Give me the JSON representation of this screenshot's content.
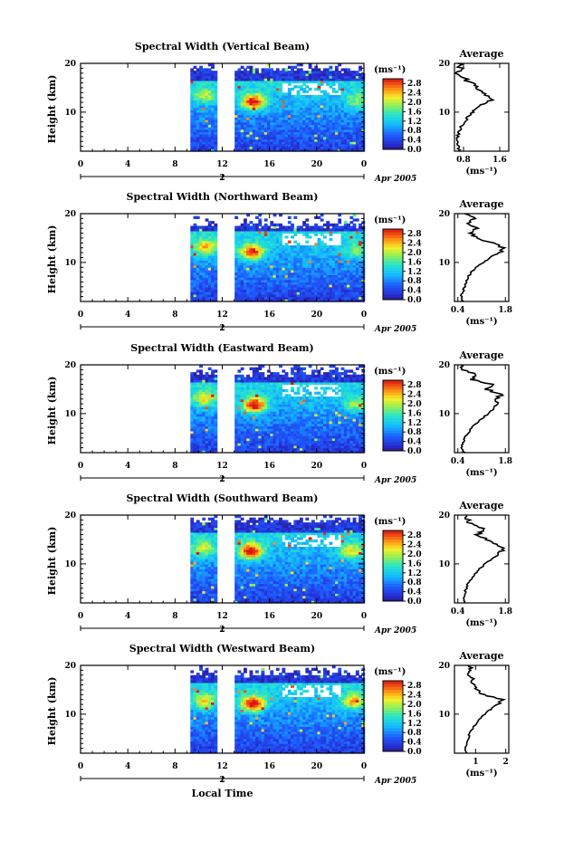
{
  "figure": {
    "xlabel": "Local Time",
    "date_label": "Apr 2005",
    "day_label": "2",
    "cbar_unit": "(ms⁻¹)",
    "avg_unit": "(ms⁻¹)",
    "ylabel": "Height (km)",
    "avg_title": "Average"
  },
  "chart_data": [
    {
      "type": "heatmap",
      "title": "Spectral Width (Vertical Beam)",
      "ylabel": "Height (km)",
      "xlabel": "Local Time",
      "x_ticks": [
        "0",
        "4",
        "8",
        "12",
        "16",
        "20",
        "0"
      ],
      "y_ticks": [
        "20",
        "10"
      ],
      "xlim": [
        0,
        24
      ],
      "ylim": [
        2,
        20
      ],
      "data_gaps": [
        [
          0,
          9.3
        ],
        [
          11.5,
          12.9
        ]
      ],
      "colorbar_ticks": [
        "2.8",
        "2.4",
        "2.0",
        "1.6",
        "1.2",
        "0.8",
        "0.4",
        "0.0"
      ],
      "colorbar_range": [
        0,
        3.0
      ],
      "hotspots": [
        [
          14.5,
          12.0,
          2.8
        ],
        [
          23.3,
          12.2,
          1.6
        ],
        [
          10.4,
          13.3,
          1.7
        ]
      ],
      "upper_limit_km": 18.5,
      "avg_profile": {
        "title": "Average",
        "xlabel": "(ms⁻¹)",
        "x_ticks": [
          "0.8",
          "1.6"
        ],
        "xlim": [
          0.6,
          1.8
        ],
        "y_ticks": [
          "20",
          "10"
        ],
        "heights": [
          2,
          3,
          4,
          5,
          6,
          7,
          8,
          9,
          10,
          11,
          12,
          13,
          14,
          15,
          16,
          17,
          18,
          19,
          20
        ],
        "values": [
          0.7,
          0.68,
          0.66,
          0.67,
          0.7,
          0.75,
          0.82,
          0.9,
          1.0,
          1.1,
          1.3,
          1.45,
          1.25,
          1.15,
          0.95,
          0.8,
          0.7,
          0.75,
          0.68
        ]
      }
    },
    {
      "type": "heatmap",
      "title": "Spectral Width (Northward Beam)",
      "ylabel": "Height (km)",
      "xlabel": "Local Time",
      "x_ticks": [
        "0",
        "4",
        "8",
        "12",
        "16",
        "20",
        "0"
      ],
      "y_ticks": [
        "20",
        "10"
      ],
      "xlim": [
        0,
        24
      ],
      "ylim": [
        2,
        20
      ],
      "data_gaps": [
        [
          0,
          9.3
        ],
        [
          11.5,
          12.9
        ]
      ],
      "colorbar_ticks": [
        "2.8",
        "2.4",
        "2.0",
        "1.6",
        "1.2",
        "0.8",
        "0.4",
        "0.0"
      ],
      "colorbar_range": [
        0,
        3.0
      ],
      "hotspots": [
        [
          14.4,
          12.0,
          2.7
        ],
        [
          23.2,
          12.3,
          1.6
        ],
        [
          10.5,
          13.0,
          2.2
        ]
      ],
      "upper_limit_km": 17.5,
      "avg_profile": {
        "title": "Average",
        "xlabel": "(ms⁻¹)",
        "x_ticks": [
          "0.4",
          "1.8"
        ],
        "xlim": [
          0.3,
          1.9
        ],
        "y_ticks": [
          "20",
          "10"
        ],
        "heights": [
          2,
          3,
          4,
          5,
          6,
          7,
          8,
          9,
          10,
          11,
          12,
          13,
          14,
          15,
          16,
          17,
          18,
          19,
          20
        ],
        "values": [
          0.55,
          0.5,
          0.55,
          0.6,
          0.65,
          0.7,
          0.8,
          0.95,
          1.15,
          1.35,
          1.6,
          1.75,
          1.4,
          1.0,
          0.8,
          0.95,
          0.7,
          0.9,
          0.6
        ]
      }
    },
    {
      "type": "heatmap",
      "title": "Spectral Width (Eastward Beam)",
      "ylabel": "Height (km)",
      "xlabel": "Local Time",
      "x_ticks": [
        "0",
        "4",
        "8",
        "12",
        "16",
        "20",
        "0"
      ],
      "y_ticks": [
        "20",
        "10"
      ],
      "xlim": [
        0,
        24
      ],
      "ylim": [
        2,
        20
      ],
      "data_gaps": [
        [
          0,
          9.3
        ],
        [
          11.5,
          12.9
        ]
      ],
      "colorbar_ticks": [
        "2.8",
        "2.4",
        "2.0",
        "1.6",
        "1.2",
        "0.8",
        "0.4",
        "0.0"
      ],
      "colorbar_range": [
        0,
        3.0
      ],
      "hotspots": [
        [
          14.6,
          11.6,
          3.0
        ],
        [
          23.2,
          11.8,
          1.7
        ],
        [
          10.4,
          13.0,
          2.0
        ]
      ],
      "upper_limit_km": 18.0,
      "avg_profile": {
        "title": "Average",
        "xlabel": "(ms⁻¹)",
        "x_ticks": [
          "0.4",
          "1.8"
        ],
        "xlim": [
          0.3,
          1.9
        ],
        "y_ticks": [
          "20",
          "10"
        ],
        "heights": [
          2,
          3,
          4,
          5,
          6,
          7,
          8,
          9,
          10,
          11,
          12,
          13,
          14,
          15,
          16,
          17,
          18,
          19,
          20
        ],
        "values": [
          0.6,
          0.5,
          0.55,
          0.6,
          0.7,
          0.8,
          0.95,
          1.1,
          1.3,
          1.45,
          1.55,
          1.5,
          1.7,
          1.2,
          1.4,
          0.8,
          0.9,
          0.6,
          0.5
        ]
      }
    },
    {
      "type": "heatmap",
      "title": "Spectral Width (Southward Beam)",
      "ylabel": "Height (km)",
      "xlabel": "Local Time",
      "x_ticks": [
        "0",
        "4",
        "8",
        "12",
        "16",
        "20",
        "0"
      ],
      "y_ticks": [
        "20",
        "10"
      ],
      "xlim": [
        0,
        24
      ],
      "ylim": [
        2,
        20
      ],
      "data_gaps": [
        [
          0,
          9.3
        ],
        [
          11.5,
          12.9
        ]
      ],
      "colorbar_ticks": [
        "2.8",
        "2.4",
        "2.0",
        "1.6",
        "1.2",
        "0.8",
        "0.4",
        "0.0"
      ],
      "colorbar_range": [
        0,
        3.0
      ],
      "hotspots": [
        [
          14.3,
          12.5,
          2.9
        ],
        [
          22.8,
          12.4,
          2.0
        ],
        [
          10.3,
          13.0,
          1.8
        ]
      ],
      "upper_limit_km": 18.5,
      "avg_profile": {
        "title": "Average",
        "xlabel": "(ms⁻¹)",
        "x_ticks": [
          "0.4",
          "1.8"
        ],
        "xlim": [
          0.3,
          1.9
        ],
        "y_ticks": [
          "20",
          "10"
        ],
        "heights": [
          2,
          3,
          4,
          5,
          6,
          7,
          8,
          9,
          10,
          11,
          12,
          13,
          14,
          15,
          16,
          17,
          18,
          19,
          20
        ],
        "values": [
          0.6,
          0.55,
          0.6,
          0.65,
          0.7,
          0.8,
          0.9,
          1.05,
          1.2,
          1.4,
          1.6,
          1.75,
          1.55,
          1.3,
          1.0,
          1.2,
          0.8,
          0.7,
          0.65
        ]
      }
    },
    {
      "type": "heatmap",
      "title": "Spectral Width (Westward Beam)",
      "ylabel": "Height (km)",
      "xlabel": "Local Time",
      "x_ticks": [
        "0",
        "4",
        "8",
        "12",
        "16",
        "20",
        "0"
      ],
      "y_ticks": [
        "20",
        "10"
      ],
      "xlim": [
        0,
        24
      ],
      "ylim": [
        2,
        20
      ],
      "data_gaps": [
        [
          0,
          9.3
        ],
        [
          11.5,
          12.9
        ]
      ],
      "colorbar_ticks": [
        "2.8",
        "2.4",
        "2.0",
        "1.6",
        "1.2",
        "0.8",
        "0.4",
        "0.0"
      ],
      "colorbar_range": [
        0,
        3.0
      ],
      "hotspots": [
        [
          14.5,
          12.0,
          3.0
        ],
        [
          23.0,
          12.5,
          2.2
        ],
        [
          10.4,
          12.5,
          2.0
        ]
      ],
      "upper_limit_km": 18.0,
      "avg_profile": {
        "title": "Average",
        "xlabel": "(ms⁻¹)",
        "x_ticks": [
          "1",
          "2"
        ],
        "xlim": [
          0.3,
          2.1
        ],
        "y_ticks": [
          "20",
          "10"
        ],
        "heights": [
          2,
          3,
          4,
          5,
          6,
          7,
          8,
          9,
          10,
          11,
          12,
          13,
          14,
          15,
          16,
          17,
          18,
          19,
          20
        ],
        "values": [
          0.7,
          0.65,
          0.7,
          0.75,
          0.8,
          0.9,
          1.0,
          1.15,
          1.3,
          1.5,
          1.7,
          1.9,
          1.3,
          1.0,
          0.9,
          0.95,
          0.8,
          0.85,
          0.75
        ]
      }
    }
  ]
}
